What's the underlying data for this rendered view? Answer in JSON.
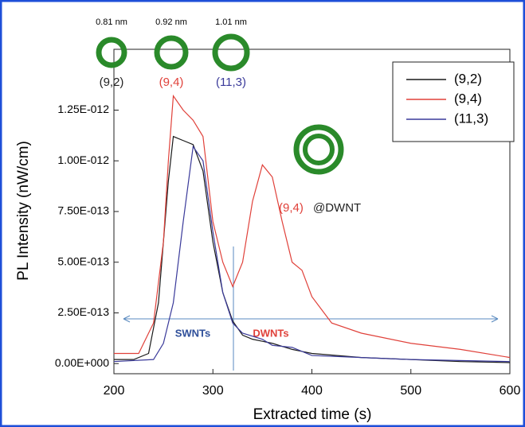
{
  "chart_data": {
    "type": "line",
    "x_label": "Extracted time (s)",
    "y_label": "PL Intensity (nW/cm)",
    "xlim": [
      200,
      600
    ],
    "xticks": [
      200,
      300,
      400,
      500,
      600
    ],
    "ylim": [
      -5e-14,
      1.55e-12
    ],
    "yticks": [
      {
        "value": 0,
        "label": "0.00E+000"
      },
      {
        "value": 2.5e-13,
        "label": "2.50E-013"
      },
      {
        "value": 5e-13,
        "label": "5.00E-013"
      },
      {
        "value": 7.5e-13,
        "label": "7.50E-013"
      },
      {
        "value": 1e-12,
        "label": "1.00E-012"
      },
      {
        "value": 1.25e-12,
        "label": "1.25E-012"
      }
    ],
    "legend": "top-right",
    "series": [
      {
        "name": "(9,2)",
        "color": "#1a1a1a",
        "x": [
          200,
          220,
          235,
          245,
          255,
          260,
          270,
          280,
          290,
          300,
          310,
          320,
          330,
          340,
          350,
          360,
          380,
          400,
          450,
          500,
          550,
          600
        ],
        "values": [
          2e-14,
          2e-14,
          5e-14,
          3e-13,
          9e-13,
          1.12e-12,
          1.1e-12,
          1.08e-12,
          9.5e-13,
          6e-13,
          3.5e-13,
          2.1e-13,
          1.4e-13,
          1.2e-13,
          1.1e-13,
          1e-13,
          7e-14,
          5e-14,
          3e-14,
          2e-14,
          1e-14,
          5e-15
        ]
      },
      {
        "name": "(9,4)",
        "color": "#e0413a",
        "x": [
          200,
          225,
          240,
          250,
          255,
          260,
          270,
          280,
          290,
          300,
          310,
          320,
          330,
          340,
          350,
          360,
          370,
          380,
          390,
          400,
          420,
          450,
          500,
          550,
          600
        ],
        "values": [
          5e-14,
          5e-14,
          2e-13,
          6e-13,
          1e-12,
          1.32e-12,
          1.25e-12,
          1.2e-12,
          1.12e-12,
          7e-13,
          5e-13,
          3.8e-13,
          5e-13,
          8e-13,
          9.8e-13,
          9.2e-13,
          7e-13,
          5e-13,
          4.6e-13,
          3.3e-13,
          2e-13,
          1.5e-13,
          1e-13,
          7e-14,
          3e-14
        ]
      },
      {
        "name": "(11,3)",
        "color": "#3a3a9a",
        "x": [
          200,
          240,
          250,
          260,
          270,
          280,
          290,
          300,
          310,
          320,
          330,
          350,
          360,
          380,
          400,
          450,
          500,
          600
        ],
        "values": [
          1e-14,
          2e-14,
          1e-13,
          3e-13,
          7e-13,
          1.07e-12,
          1e-12,
          6.5e-13,
          3.5e-13,
          2e-13,
          1.5e-13,
          1.2e-13,
          9e-14,
          8e-14,
          4e-14,
          3e-14,
          2e-14,
          1e-14
        ]
      }
    ],
    "annotations": {
      "d1": "0.81 nm",
      "d2": "0.92 nm",
      "d3": "1.01 nm",
      "c1": "(9,2)",
      "c2": "(9,4)",
      "c3": "(11,3)",
      "dw1": "(9,4)",
      "dw2": "@DWNT",
      "swnt": "SWNTs",
      "dwnt": "DWNTs"
    }
  }
}
